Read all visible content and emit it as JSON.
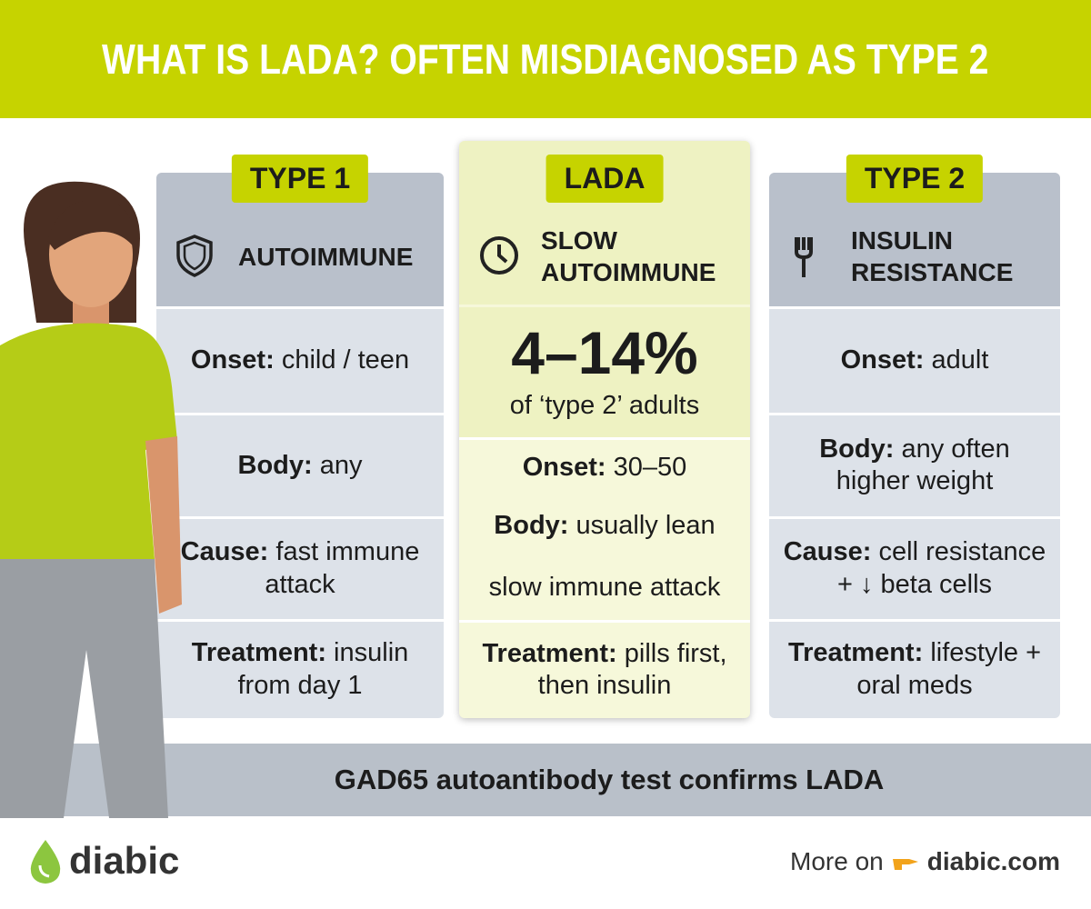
{
  "header": {
    "title": "WHAT IS LADA? OFTEN MISDIAGNOSED AS TYPE 2"
  },
  "columns": [
    {
      "name": "TYPE 1",
      "subtitle": "AUTOIMMUNE",
      "rows": [
        {
          "label": "Onset:",
          "text": "child / teen"
        },
        {
          "label": "Body:",
          "text": "any"
        },
        {
          "label": "Cause:",
          "text": "fast immune attack"
        },
        {
          "label": "Treatment:",
          "text": "insulin from day 1"
        }
      ]
    },
    {
      "name": "LADA",
      "subtitle": "SLOW AUTOIMMUNE",
      "stat": "4–14%",
      "stat_caption": "of ‘type 2’ adults",
      "rows": [
        {
          "label": "Onset:",
          "text": "30–50"
        },
        {
          "label": "Body:",
          "text": "usually lean"
        },
        {
          "text": "slow immune attack"
        },
        {
          "label": "Treatment:",
          "text": "pills first, then insulin"
        }
      ]
    },
    {
      "name": "TYPE 2",
      "subtitle": "INSULIN RESISTANCE",
      "rows": [
        {
          "label": "Onset:",
          "text": "adult"
        },
        {
          "label": "Body:",
          "text": "any often higher weight"
        },
        {
          "label": "Cause:",
          "text": "cell resistance + ↓ beta cells"
        },
        {
          "label": "Treatment:",
          "text": "lifestyle + oral meds"
        }
      ]
    }
  ],
  "banner": "GAD65 autoantibody test confirms LADA",
  "footer": {
    "brand": "diabic",
    "link_prefix": "More on",
    "link": "diabic.com"
  }
}
